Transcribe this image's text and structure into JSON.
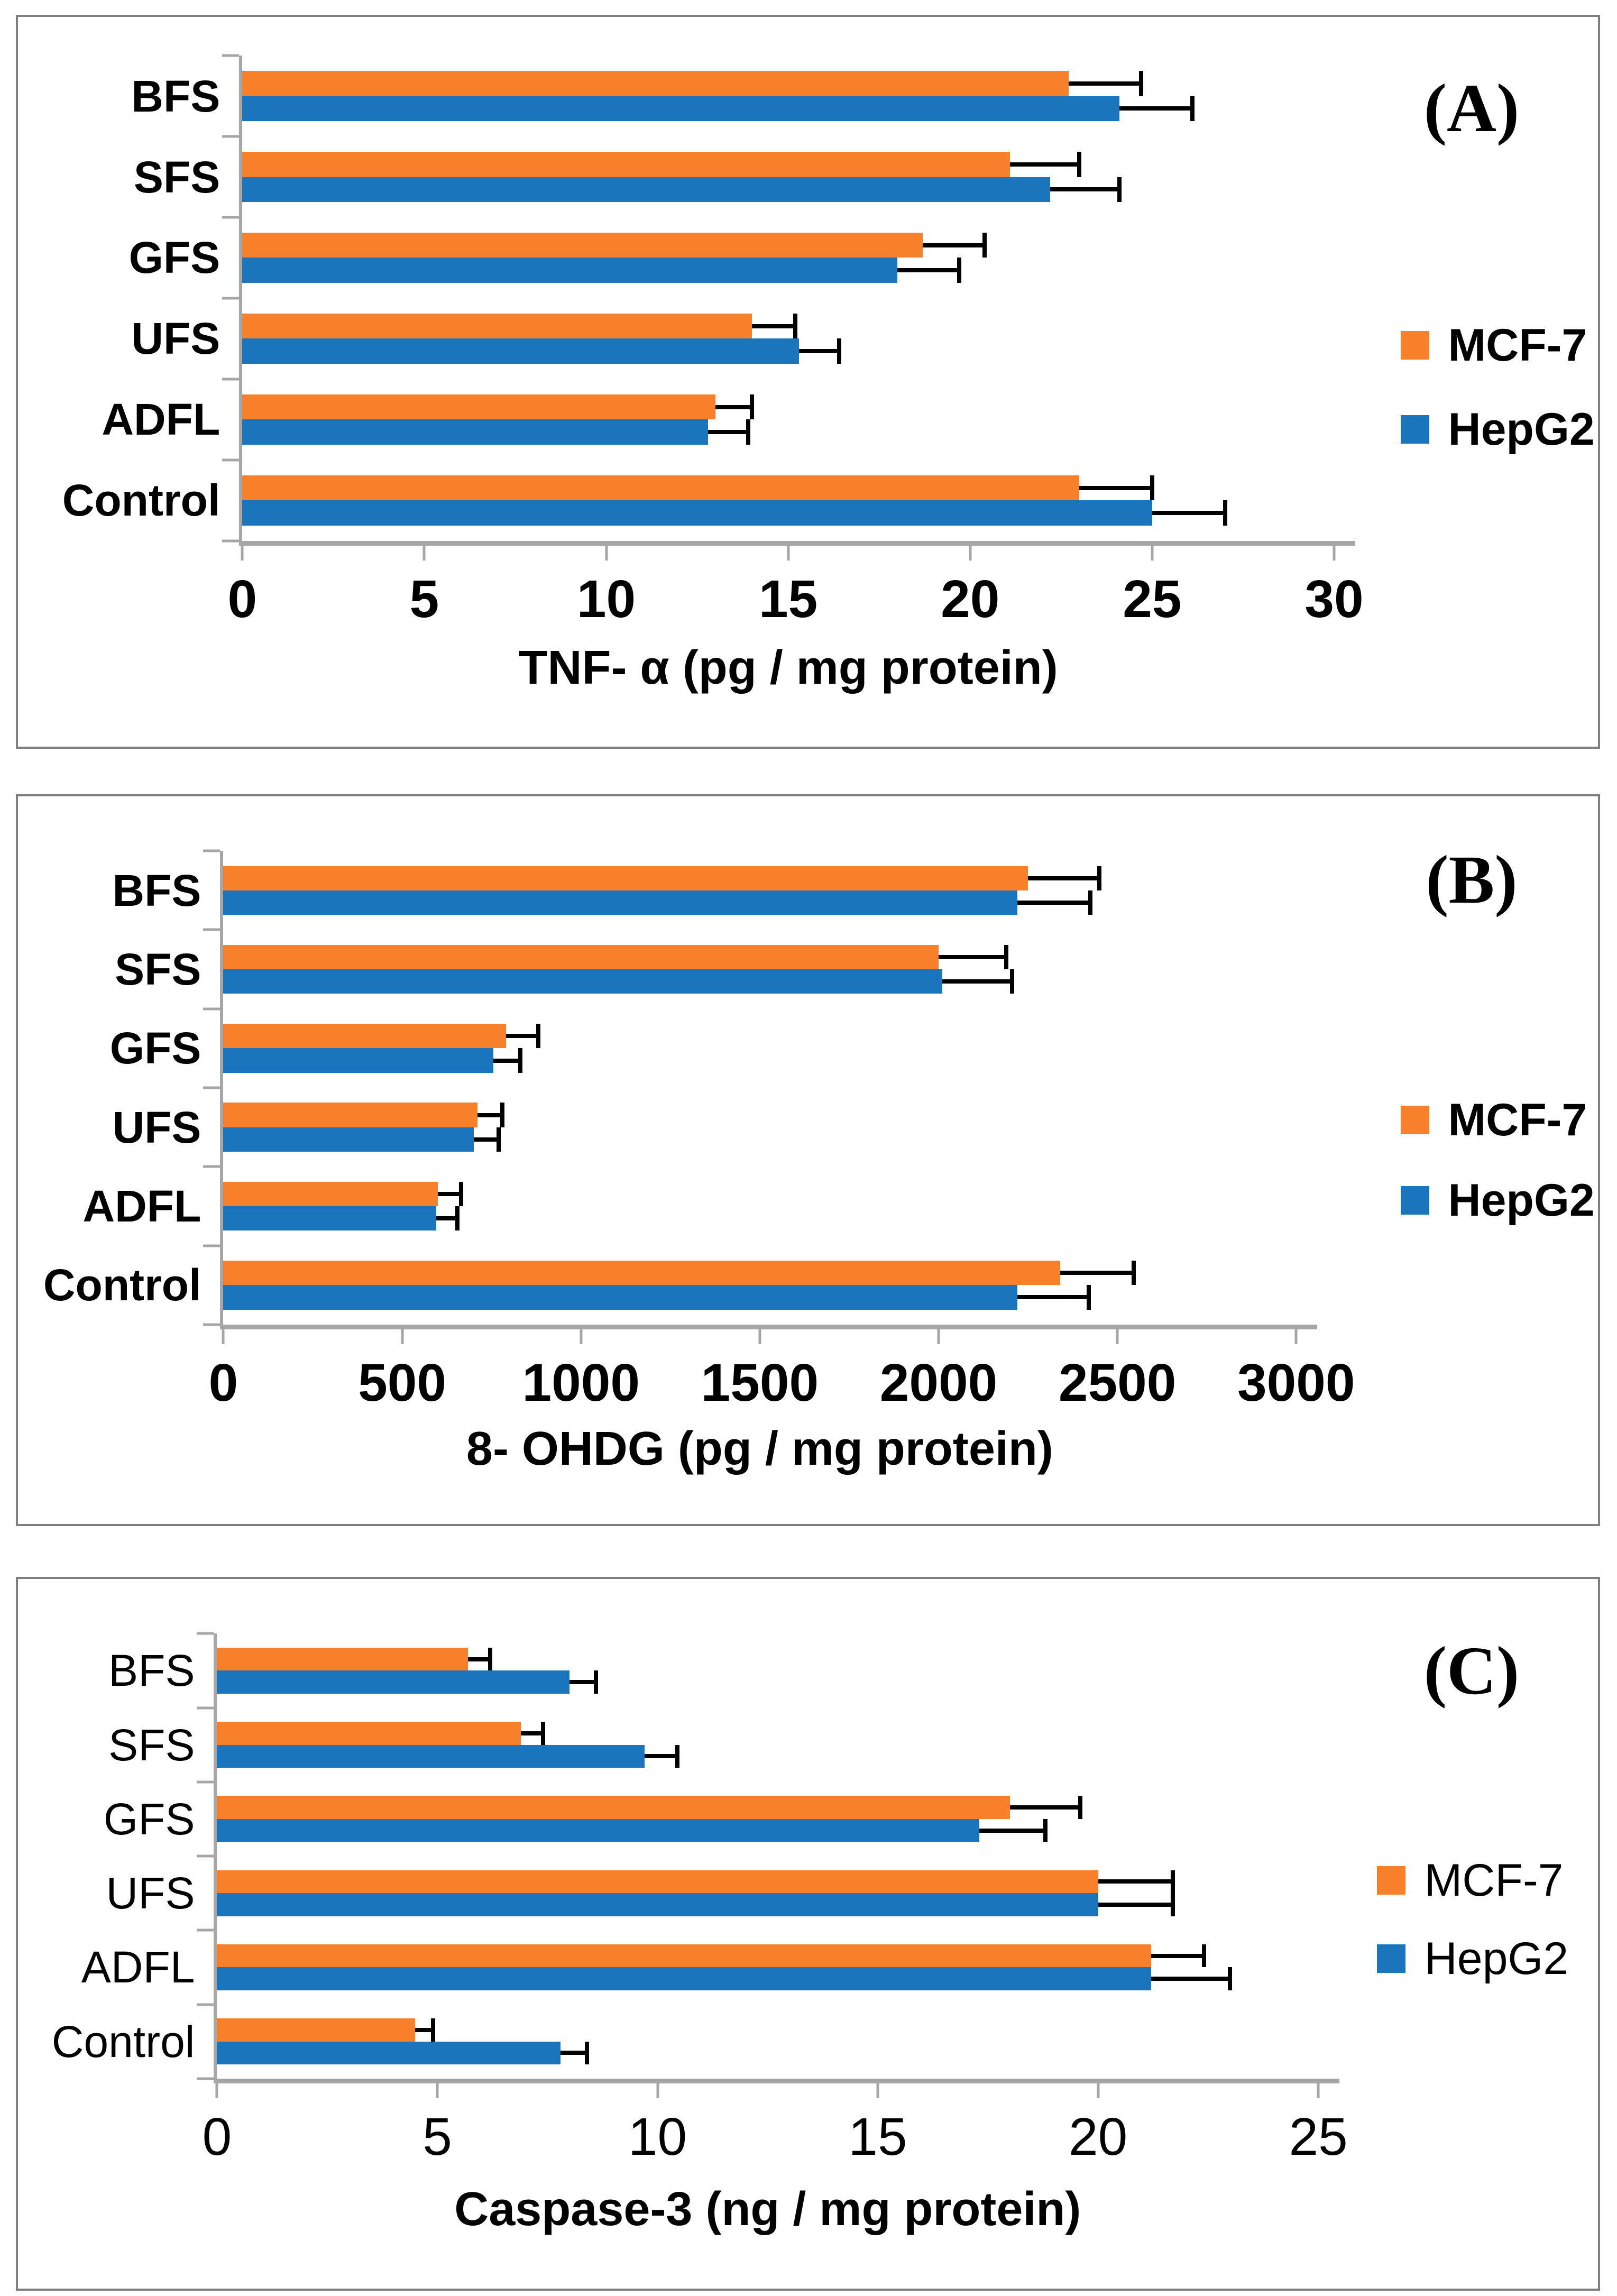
{
  "legend_colors": {
    "mcf7": "#f8802b",
    "hepg2": "#1b75bc"
  },
  "style_colors": {
    "axis_gray": "#a6a6a6",
    "panel_border": "#7f7f7f",
    "error_bar": "#000000"
  },
  "chart_data": [
    {
      "type": "bar",
      "orientation": "horizontal",
      "panel_label": "(A)",
      "xlabel": "TNF- α (pg / mg protein)",
      "xlim": [
        0,
        30
      ],
      "xticks": [
        0,
        5,
        10,
        15,
        20,
        25,
        30
      ],
      "grid": false,
      "legend_position": "right-middle",
      "bold_text": true,
      "categories": [
        "BFS",
        "SFS",
        "GFS",
        "UFS",
        "ADFL",
        "Control"
      ],
      "series": [
        {
          "name": "MCF-7",
          "color": "#f8802b",
          "values": [
            22.7,
            21.1,
            18.7,
            14.0,
            13.0,
            23.0
          ],
          "errors": [
            2.0,
            1.9,
            1.7,
            1.2,
            1.0,
            2.0
          ]
        },
        {
          "name": "HepG2",
          "color": "#1b75bc",
          "values": [
            24.1,
            22.2,
            18.0,
            15.3,
            12.8,
            25.0
          ],
          "errors": [
            2.0,
            1.9,
            1.7,
            1.1,
            1.1,
            2.0
          ]
        }
      ]
    },
    {
      "type": "bar",
      "orientation": "horizontal",
      "panel_label": "(B)",
      "xlabel": "8- OHDG (pg / mg protein)",
      "xlim": [
        0,
        3000
      ],
      "xticks": [
        0,
        500,
        1000,
        1500,
        2000,
        2500,
        3000
      ],
      "grid": false,
      "legend_position": "right-middle",
      "bold_text": true,
      "categories": [
        "BFS",
        "SFS",
        "GFS",
        "UFS",
        "ADFL",
        "Control"
      ],
      "series": [
        {
          "name": "MCF-7",
          "color": "#f8802b",
          "values": [
            2250,
            2000,
            790,
            710,
            600,
            2340
          ],
          "errors": [
            200,
            190,
            90,
            70,
            65,
            205
          ]
        },
        {
          "name": "HepG2",
          "color": "#1b75bc",
          "values": [
            2220,
            2010,
            755,
            700,
            595,
            2220
          ],
          "errors": [
            205,
            195,
            75,
            70,
            60,
            200
          ]
        }
      ]
    },
    {
      "type": "bar",
      "orientation": "horizontal",
      "panel_label": "(C)",
      "xlabel": "Caspase-3 (ng / mg protein)",
      "xlim": [
        0,
        25
      ],
      "xticks": [
        0,
        5,
        10,
        15,
        20,
        25
      ],
      "grid": false,
      "legend_position": "right-middle",
      "bold_text": false,
      "categories": [
        "BFS",
        "SFS",
        "GFS",
        "UFS",
        "ADFL",
        "Control"
      ],
      "series": [
        {
          "name": "MCF-7",
          "color": "#f8802b",
          "values": [
            5.7,
            6.9,
            18.0,
            20.0,
            21.2,
            4.5
          ],
          "errors": [
            0.5,
            0.5,
            1.6,
            1.7,
            1.2,
            0.4
          ]
        },
        {
          "name": "HepG2",
          "color": "#1b75bc",
          "values": [
            8.0,
            9.7,
            17.3,
            20.0,
            21.2,
            7.8
          ],
          "errors": [
            0.6,
            0.75,
            1.5,
            1.7,
            1.8,
            0.6
          ]
        }
      ]
    }
  ]
}
